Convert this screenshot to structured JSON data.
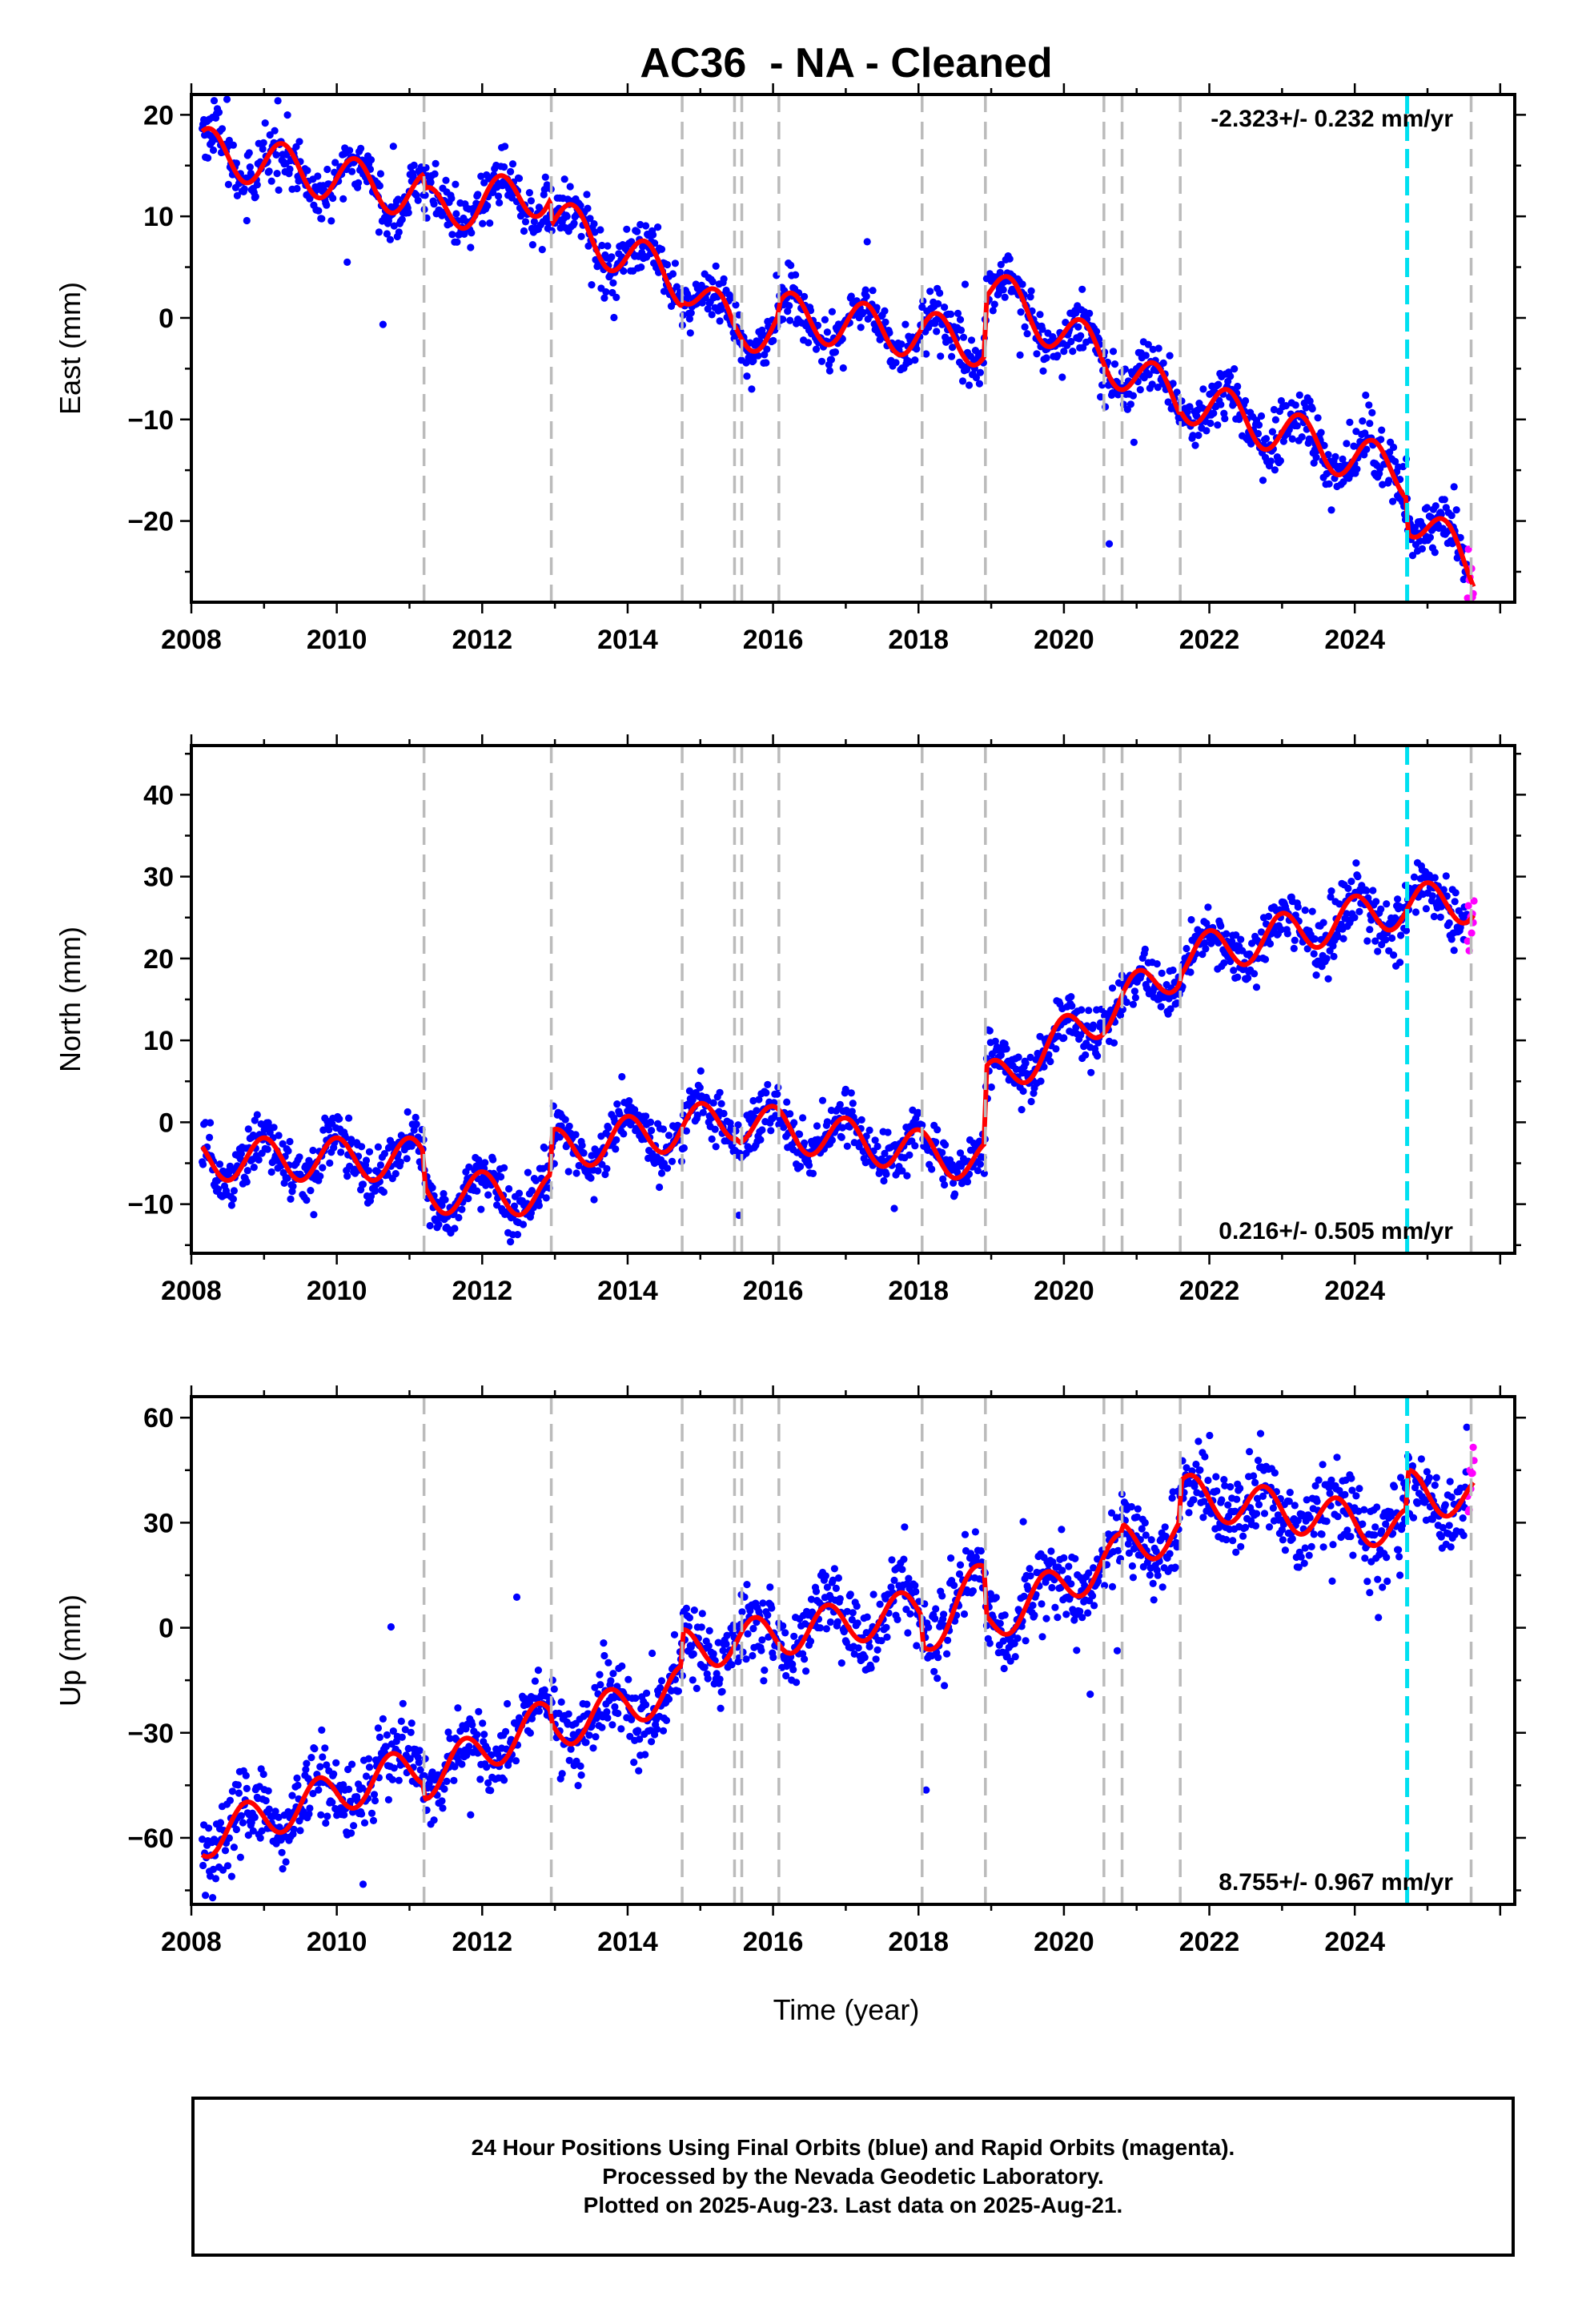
{
  "title": "AC36  - NA - Cleaned",
  "xlabel": "Time (year)",
  "caption": [
    "24 Hour Positions Using Final Orbits (blue) and Rapid Orbits (magenta).",
    "Processed by the Nevada Geodetic Laboratory.",
    "Plotted on 2025-Aug-23. Last data on 2025-Aug-21."
  ],
  "colors": {
    "final": "#0000ff",
    "rapid": "#ff00ff",
    "model": "#ff0000",
    "event": "#bbbbbb",
    "latest_event": "#00e0f0"
  },
  "chart_data": [
    {
      "type": "scatter",
      "panel": "East",
      "ylabel": "East (mm)",
      "rate_label": "-2.323+/- 0.232 mm/yr",
      "rate_position": "top-right",
      "xlim": [
        2008.0,
        2026.2
      ],
      "ylim": [
        -28,
        22
      ],
      "xticks": [
        2008,
        2010,
        2012,
        2014,
        2016,
        2018,
        2020,
        2022,
        2024
      ],
      "yticks": [
        -20,
        -10,
        0,
        10,
        20
      ],
      "event_lines": [
        2011.2,
        2012.95,
        2014.75,
        2015.47,
        2015.57,
        2016.08,
        2018.05,
        2018.92,
        2020.55,
        2020.8,
        2021.6,
        2025.6
      ],
      "latest_event": 2024.72,
      "data_start": 2008.15,
      "rapid_start": 2025.55,
      "data_end": 2025.64,
      "model": {
        "anchors": [
          [
            2008.15,
            16.5
          ],
          [
            2011.18,
            12.0
          ],
          [
            2011.22,
            10.5
          ],
          [
            2012.93,
            12.5
          ],
          [
            2012.97,
            9.8
          ],
          [
            2014.73,
            3.5
          ],
          [
            2014.77,
            3.8
          ],
          [
            2015.45,
            -1.2
          ],
          [
            2016.06,
            -0.8
          ],
          [
            2016.1,
            0.3
          ],
          [
            2018.9,
            -2.5
          ],
          [
            2018.94,
            3.0
          ],
          [
            2021.58,
            -8.2
          ],
          [
            2021.62,
            -7.8
          ],
          [
            2024.7,
            -15.5
          ],
          [
            2024.74,
            -19.0
          ],
          [
            2025.64,
            -24.8
          ]
        ],
        "amplitude": 2.3,
        "phase": 0.0
      },
      "noise": 1.3
    },
    {
      "type": "scatter",
      "panel": "North",
      "ylabel": "North (mm)",
      "rate_label": "0.216+/- 0.505 mm/yr",
      "rate_position": "bottom-right",
      "xlim": [
        2008.0,
        2026.2
      ],
      "ylim": [
        -16,
        46
      ],
      "xticks": [
        2008,
        2010,
        2012,
        2014,
        2016,
        2018,
        2020,
        2022,
        2024
      ],
      "yticks": [
        -10,
        0,
        10,
        20,
        30,
        40
      ],
      "event_lines": [
        2011.2,
        2012.95,
        2014.75,
        2015.47,
        2015.57,
        2016.08,
        2018.05,
        2018.92,
        2020.55,
        2020.8,
        2021.6,
        2025.6
      ],
      "latest_event": 2024.72,
      "data_start": 2008.15,
      "rapid_start": 2025.55,
      "data_end": 2025.64,
      "model": {
        "anchors": [
          [
            2008.15,
            -4.5
          ],
          [
            2011.18,
            -4.5
          ],
          [
            2011.22,
            -8.5
          ],
          [
            2012.93,
            -8.8
          ],
          [
            2012.97,
            -3.5
          ],
          [
            2015.5,
            0.5
          ],
          [
            2015.55,
            0.0
          ],
          [
            2018.9,
            -4.8
          ],
          [
            2018.94,
            4.5
          ],
          [
            2021.58,
            19.0
          ],
          [
            2021.62,
            20.0
          ],
          [
            2024.7,
            26.5
          ],
          [
            2025.64,
            27.0
          ]
        ],
        "amplitude": 2.6,
        "phase": 0.25
      },
      "noise": 1.6
    },
    {
      "type": "scatter",
      "panel": "Up",
      "ylabel": "Up (mm)",
      "rate_label": "8.755+/- 0.967 mm/yr",
      "rate_position": "bottom-right",
      "xlim": [
        2008.0,
        2026.2
      ],
      "ylim": [
        -79,
        66
      ],
      "xticks": [
        2008,
        2010,
        2012,
        2014,
        2016,
        2018,
        2020,
        2022,
        2024
      ],
      "yticks": [
        -60,
        -30,
        0,
        30,
        60
      ],
      "event_lines": [
        2011.2,
        2012.95,
        2014.75,
        2015.47,
        2015.57,
        2016.08,
        2018.05,
        2018.92,
        2020.55,
        2020.8,
        2021.6,
        2025.6
      ],
      "latest_event": 2024.72,
      "data_start": 2008.15,
      "rapid_start": 2025.55,
      "data_end": 2025.64,
      "model": {
        "anchors": [
          [
            2008.15,
            -60.0
          ],
          [
            2011.18,
            -39.0
          ],
          [
            2011.22,
            -43.0
          ],
          [
            2012.93,
            -26.0
          ],
          [
            2012.97,
            -29.0
          ],
          [
            2014.73,
            -17.0
          ],
          [
            2014.77,
            -6.5
          ],
          [
            2018.03,
            5.0
          ],
          [
            2018.07,
            -3.0
          ],
          [
            2018.9,
            14.0
          ],
          [
            2018.94,
            1.0
          ],
          [
            2020.78,
            21.0
          ],
          [
            2020.82,
            24.0
          ],
          [
            2021.58,
            27.0
          ],
          [
            2021.62,
            38.0
          ],
          [
            2024.7,
            28.0
          ],
          [
            2024.74,
            39.0
          ],
          [
            2025.64,
            37.0
          ]
        ],
        "amplitude": 6.0,
        "phase": 0.5
      },
      "noise": 5.5
    }
  ]
}
